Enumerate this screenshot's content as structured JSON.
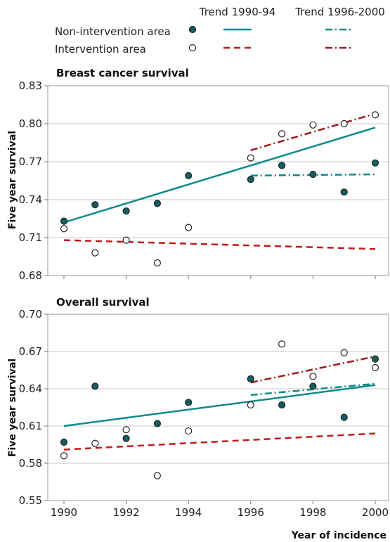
{
  "legend": {
    "trend_header_1": "Trend 1990-94",
    "trend_header_2": "Trend 1996-2000",
    "non_intervention": "Non-intervention area",
    "intervention": "Intervention area"
  },
  "colors": {
    "non_intervention": "#0e8a8a",
    "non_intervention_marker": "#155e5e",
    "intervention": "#c01a1a",
    "intervention_dash_dot": "#a01818",
    "open_marker_fill": "#ffffff",
    "marker_edge": "#222222"
  },
  "xlabel": "Year of incidence",
  "chart_data": [
    {
      "type": "scatter",
      "title": "Breast cancer survival",
      "ylabel": "Five year survival",
      "xlim": [
        1990,
        2000
      ],
      "ylim": [
        0.68,
        0.83
      ],
      "x_ticks": [
        "1990",
        "1992",
        "1994",
        "1996",
        "1998",
        "2000"
      ],
      "y_ticks": [
        "0.68",
        "0.71",
        "0.74",
        "0.77",
        "0.80",
        "0.83"
      ],
      "grid": true,
      "series": [
        {
          "name": "Non-intervention area",
          "x": [
            1990,
            1991,
            1992,
            1993,
            1994,
            1996,
            1997,
            1998,
            1999,
            2000
          ],
          "y": [
            0.723,
            0.736,
            0.731,
            0.737,
            0.759,
            0.756,
            0.767,
            0.76,
            0.746,
            0.769
          ]
        },
        {
          "name": "Intervention area",
          "x": [
            1990,
            1991,
            1992,
            1993,
            1994,
            1996,
            1997,
            1998,
            1999,
            2000
          ],
          "y": [
            0.717,
            0.698,
            0.708,
            0.69,
            0.718,
            0.773,
            0.792,
            0.799,
            0.8,
            0.807
          ]
        }
      ],
      "trends": [
        {
          "group": "Non-intervention area",
          "period": "Trend 1990-94",
          "x": [
            1990,
            2000
          ],
          "y": [
            0.722,
            0.797
          ]
        },
        {
          "group": "Intervention area",
          "period": "Trend 1990-94",
          "x": [
            1990,
            2000
          ],
          "y": [
            0.708,
            0.701
          ]
        },
        {
          "group": "Non-intervention area",
          "period": "Trend 1996-2000",
          "x": [
            1996,
            2000
          ],
          "y": [
            0.759,
            0.76
          ]
        },
        {
          "group": "Intervention area",
          "period": "Trend 1996-2000",
          "x": [
            1996,
            2000
          ],
          "y": [
            0.779,
            0.808
          ]
        }
      ]
    },
    {
      "type": "scatter",
      "title": "Overall survival",
      "ylabel": "Five year survival",
      "xlim": [
        1990,
        2000
      ],
      "ylim": [
        0.55,
        0.7
      ],
      "x_ticks": [
        "1990",
        "1992",
        "1994",
        "1996",
        "1998",
        "2000"
      ],
      "y_ticks": [
        "0.55",
        "0.58",
        "0.61",
        "0.64",
        "0.67",
        "0.70"
      ],
      "grid": true,
      "series": [
        {
          "name": "Non-intervention area",
          "x": [
            1990,
            1991,
            1992,
            1993,
            1994,
            1996,
            1997,
            1998,
            1999,
            2000
          ],
          "y": [
            0.597,
            0.642,
            0.6,
            0.612,
            0.629,
            0.648,
            0.627,
            0.642,
            0.617,
            0.664
          ]
        },
        {
          "name": "Intervention area",
          "x": [
            1990,
            1991,
            1992,
            1993,
            1994,
            1996,
            1997,
            1998,
            1999,
            2000
          ],
          "y": [
            0.586,
            0.596,
            0.607,
            0.57,
            0.606,
            0.627,
            0.676,
            0.65,
            0.669,
            0.657
          ]
        }
      ],
      "trends": [
        {
          "group": "Non-intervention area",
          "period": "Trend 1990-94",
          "x": [
            1990,
            2000
          ],
          "y": [
            0.61,
            0.643
          ]
        },
        {
          "group": "Intervention area",
          "period": "Trend 1990-94",
          "x": [
            1990,
            2000
          ],
          "y": [
            0.591,
            0.604
          ]
        },
        {
          "group": "Non-intervention area",
          "period": "Trend 1996-2000",
          "x": [
            1996,
            2000
          ],
          "y": [
            0.635,
            0.644
          ]
        },
        {
          "group": "Intervention area",
          "period": "Trend 1996-2000",
          "x": [
            1996,
            2000
          ],
          "y": [
            0.645,
            0.666
          ]
        }
      ]
    }
  ]
}
